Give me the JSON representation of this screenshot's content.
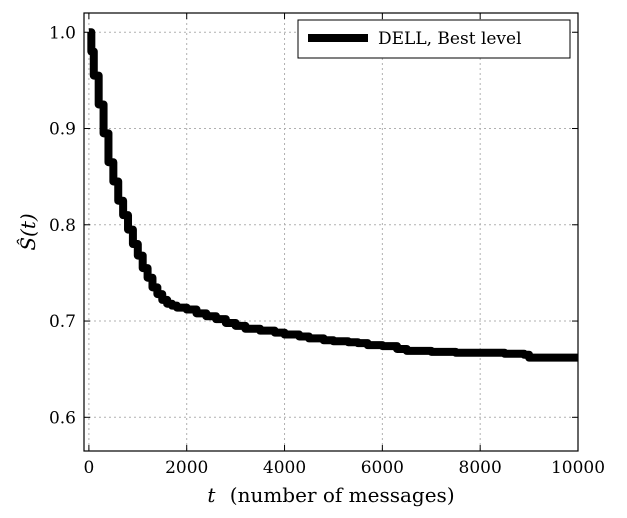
{
  "chart_data": {
    "type": "line",
    "title": "",
    "xlabel": "(number of messages)",
    "xlabel_var": "t",
    "ylabel": "Ŝ(t)",
    "xlim": [
      -100,
      10000
    ],
    "ylim": [
      0.565,
      1.02
    ],
    "xticks": [
      0,
      2000,
      4000,
      6000,
      8000,
      10000
    ],
    "yticks": [
      0.6,
      0.7,
      0.8,
      0.9,
      1.0
    ],
    "xtick_labels": [
      "0",
      "2000",
      "4000",
      "6000",
      "8000",
      "10000"
    ],
    "ytick_labels": [
      "0.6",
      "0.7",
      "0.8",
      "0.9",
      "1.0"
    ],
    "grid": true,
    "legend_position": "top-right",
    "series": [
      {
        "name": "DELL, Best level",
        "color": "#000000",
        "step": true,
        "x": [
          0,
          50,
          100,
          200,
          300,
          400,
          500,
          600,
          700,
          800,
          900,
          1000,
          1100,
          1200,
          1300,
          1400,
          1500,
          1600,
          1700,
          1800,
          2000,
          2200,
          2400,
          2600,
          2800,
          3000,
          3200,
          3500,
          3800,
          4000,
          4300,
          4500,
          4800,
          5000,
          5300,
          5500,
          5700,
          6000,
          6300,
          6500,
          7000,
          7500,
          8000,
          8500,
          8900,
          9000,
          9500,
          10000
        ],
        "values": [
          1.0,
          0.98,
          0.955,
          0.925,
          0.895,
          0.865,
          0.845,
          0.825,
          0.81,
          0.795,
          0.78,
          0.768,
          0.755,
          0.745,
          0.735,
          0.728,
          0.722,
          0.718,
          0.716,
          0.714,
          0.712,
          0.708,
          0.705,
          0.702,
          0.698,
          0.695,
          0.692,
          0.69,
          0.688,
          0.686,
          0.684,
          0.682,
          0.68,
          0.679,
          0.678,
          0.677,
          0.675,
          0.674,
          0.671,
          0.669,
          0.668,
          0.667,
          0.667,
          0.666,
          0.665,
          0.662,
          0.662,
          0.662
        ]
      }
    ]
  }
}
